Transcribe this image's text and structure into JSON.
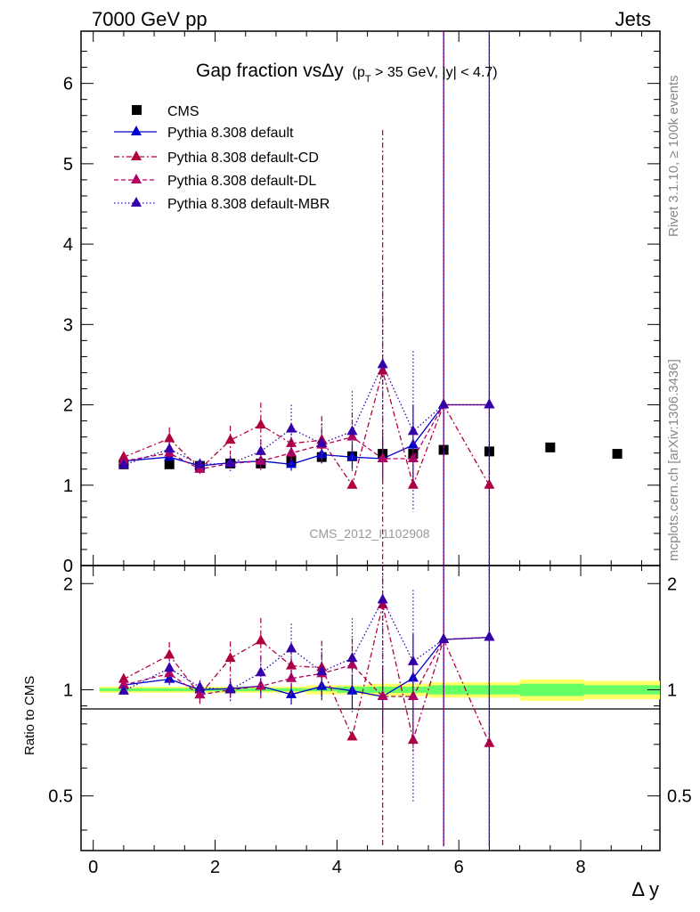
{
  "header": {
    "left": "7000 GeV pp",
    "right": "Jets"
  },
  "title": {
    "main": "Gap fraction vsΔy",
    "sub_pre": "(p",
    "sub_sub": "T",
    "sub_post": " > 35 GeV,  |y| < 4.7)"
  },
  "side_labels": {
    "rivet": "Rivet 3.1.10, ≥ 100k events",
    "mcplots": "mcplots.cern.ch [arXiv:1306.3436]"
  },
  "analysis_tag": "CMS_2012_I1102908",
  "colors": {
    "data": "#000000",
    "default": "#0000cc",
    "cd": "#b00040",
    "dl": "#b00060",
    "mbr": "#3300aa",
    "band_inner": "#66ff66",
    "band_outer": "#ffff66",
    "ref_line": "#000000"
  },
  "chart_data": {
    "type": "scatter",
    "xlabel": "Δ y",
    "ylabel_lower": "Ratio to CMS",
    "xlim": [
      -0.2,
      9.3
    ],
    "ylim_upper": [
      0,
      6.65
    ],
    "ylim_lower": [
      0.35,
      2.25
    ],
    "ylog_lower": true,
    "xticks": [
      0,
      2,
      4,
      6,
      8
    ],
    "yticks_upper": [
      0,
      1,
      2,
      3,
      4,
      5,
      6
    ],
    "yticks_lower": [
      0.5,
      1,
      2
    ],
    "ytick_labels_lower": [
      "0.5",
      "1",
      "2"
    ],
    "legend_position": "top-left",
    "data": {
      "name": "CMS",
      "x": [
        0.5,
        1.25,
        1.75,
        2.25,
        2.75,
        3.25,
        3.75,
        4.25,
        4.75,
        5.25,
        5.75,
        6.5,
        7.5,
        8.6
      ],
      "y": [
        1.26,
        1.26,
        1.24,
        1.27,
        1.27,
        1.3,
        1.35,
        1.36,
        1.39,
        1.39,
        1.44,
        1.42,
        1.47,
        1.39
      ],
      "rel_err_inner": [
        0.01,
        0.01,
        0.01,
        0.01,
        0.01,
        0.01,
        0.01,
        0.02,
        0.02,
        0.02,
        0.03,
        0.03,
        0.04,
        0.03
      ],
      "rel_err_outer": [
        0.02,
        0.02,
        0.02,
        0.02,
        0.02,
        0.02,
        0.03,
        0.03,
        0.04,
        0.04,
        0.05,
        0.05,
        0.07,
        0.06
      ]
    },
    "series": [
      {
        "name": "Pythia 8.308 default",
        "key": "default",
        "style": "solid",
        "x": [
          0.5,
          1.25,
          1.75,
          2.25,
          2.75,
          3.25,
          3.75,
          4.25,
          4.75,
          5.25,
          5.75,
          6.5
        ],
        "y": [
          1.3,
          1.35,
          1.24,
          1.28,
          1.3,
          1.26,
          1.38,
          1.35,
          1.33,
          1.5,
          2.0,
          2.0
        ],
        "err": [
          0.03,
          0.05,
          0.05,
          0.06,
          0.07,
          0.08,
          0.1,
          0.15,
          0.25,
          0.5,
          6.0,
          6.0
        ]
      },
      {
        "name": "Pythia 8.308 default-CD",
        "key": "cd",
        "style": "dashdot",
        "x": [
          0.5,
          1.25,
          1.75,
          2.25,
          2.75,
          3.25,
          3.75,
          4.25,
          4.75,
          5.25,
          5.75,
          6.5
        ],
        "y": [
          1.35,
          1.58,
          1.2,
          1.56,
          1.75,
          1.52,
          1.56,
          1.0,
          2.42,
          1.0,
          2.0,
          1.0
        ],
        "err": [
          0.05,
          0.14,
          0.07,
          0.18,
          0.28,
          0.22,
          0.3,
          0.0,
          3.0,
          0.0,
          6.0,
          0.0
        ]
      },
      {
        "name": "Pythia 8.308 default-DL",
        "key": "dl",
        "style": "dashed",
        "x": [
          0.5,
          1.25,
          1.75,
          2.25,
          2.75,
          3.25,
          3.75,
          4.25,
          4.75,
          5.25,
          5.75,
          6.5
        ],
        "y": [
          1.3,
          1.4,
          1.2,
          1.27,
          1.3,
          1.4,
          1.5,
          1.6,
          1.33,
          1.33,
          2.0,
          2.0
        ],
        "err": [
          0.04,
          0.08,
          0.06,
          0.09,
          0.12,
          0.15,
          0.2,
          0.3,
          0.3,
          0.4,
          6.0,
          6.0
        ]
      },
      {
        "name": "Pythia 8.308 default-MBR",
        "key": "mbr",
        "style": "dotted",
        "x": [
          0.5,
          1.25,
          1.75,
          2.25,
          2.75,
          3.25,
          3.75,
          4.25,
          4.75,
          5.25,
          5.75,
          6.5
        ],
        "y": [
          1.25,
          1.45,
          1.26,
          1.27,
          1.42,
          1.7,
          1.52,
          1.67,
          2.5,
          1.67,
          2.0,
          2.0
        ],
        "err": [
          0.04,
          0.08,
          0.06,
          0.1,
          0.15,
          0.3,
          0.25,
          0.5,
          1.1,
          1.0,
          6.0,
          6.0
        ]
      }
    ]
  }
}
